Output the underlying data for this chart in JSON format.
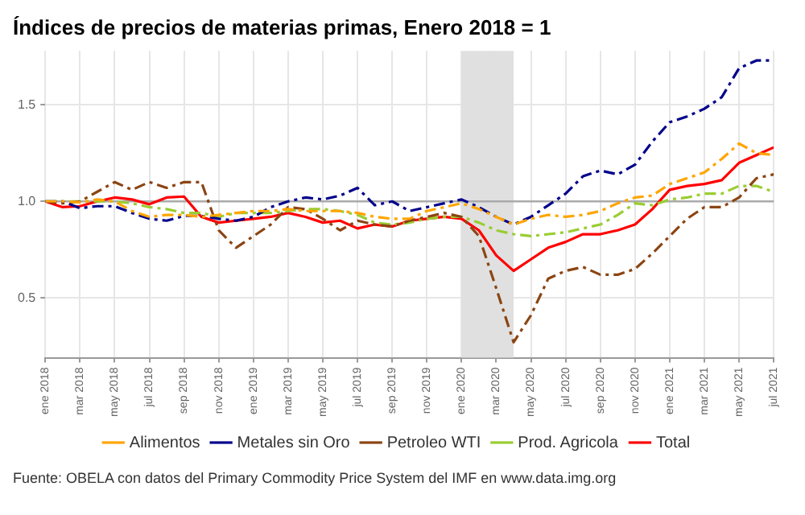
{
  "chart_data": {
    "type": "line",
    "title": "Índices de precios de materias primas, Enero 2018 = 1",
    "x": [
      "2018-01",
      "2018-02",
      "2018-03",
      "2018-04",
      "2018-05",
      "2018-06",
      "2018-07",
      "2018-08",
      "2018-09",
      "2018-10",
      "2018-11",
      "2018-12",
      "2019-01",
      "2019-02",
      "2019-03",
      "2019-04",
      "2019-05",
      "2019-06",
      "2019-07",
      "2019-08",
      "2019-09",
      "2019-10",
      "2019-11",
      "2019-12",
      "2020-01",
      "2020-02",
      "2020-03",
      "2020-04",
      "2020-05",
      "2020-06",
      "2020-07",
      "2020-08",
      "2020-09",
      "2020-10",
      "2020-11",
      "2020-12",
      "2021-01",
      "2021-02",
      "2021-03",
      "2021-04",
      "2021-05",
      "2021-06",
      "2021-07"
    ],
    "series": [
      {
        "name": "Alimentos",
        "color": "#ffa500",
        "line_style": "dashed",
        "values": [
          1.0,
          1.0,
          0.995,
          1.01,
          1.0,
          0.95,
          0.92,
          0.93,
          0.93,
          0.92,
          0.93,
          0.94,
          0.95,
          0.95,
          0.96,
          0.95,
          0.95,
          0.95,
          0.94,
          0.92,
          0.91,
          0.91,
          0.95,
          0.97,
          0.99,
          0.96,
          0.92,
          0.88,
          0.91,
          0.93,
          0.92,
          0.93,
          0.95,
          0.99,
          1.02,
          1.03,
          1.09,
          1.12,
          1.15,
          1.22,
          1.3,
          1.25,
          1.24
        ]
      },
      {
        "name": "Metales sin Oro",
        "color": "#00008b",
        "line_style": "dashed",
        "values": [
          1.0,
          1.0,
          0.965,
          0.975,
          0.975,
          0.94,
          0.91,
          0.9,
          0.925,
          0.925,
          0.91,
          0.9,
          0.92,
          0.97,
          1.0,
          1.02,
          1.01,
          1.03,
          1.07,
          0.98,
          1.0,
          0.95,
          0.97,
          0.99,
          1.01,
          0.97,
          0.92,
          0.88,
          0.92,
          0.98,
          1.04,
          1.13,
          1.16,
          1.14,
          1.19,
          1.31,
          1.41,
          1.44,
          1.48,
          1.54,
          1.69,
          1.73,
          1.73
        ]
      },
      {
        "name": "Petroleo WTI",
        "color": "#8b4513",
        "line_style": "dashed",
        "values": [
          1.0,
          0.99,
          1.0,
          1.05,
          1.1,
          1.06,
          1.1,
          1.07,
          1.1,
          1.1,
          0.85,
          0.76,
          0.82,
          0.88,
          0.97,
          0.96,
          0.91,
          0.85,
          0.9,
          0.88,
          0.87,
          0.9,
          0.92,
          0.94,
          0.92,
          0.82,
          0.55,
          0.27,
          0.41,
          0.6,
          0.64,
          0.66,
          0.62,
          0.62,
          0.65,
          0.73,
          0.82,
          0.91,
          0.97,
          0.97,
          1.02,
          1.12,
          1.14
        ]
      },
      {
        "name": "Prod. Agricola",
        "color": "#9acd32",
        "line_style": "dashed",
        "values": [
          1.0,
          1.0,
          1.0,
          1.0,
          1.0,
          0.99,
          0.97,
          0.96,
          0.94,
          0.94,
          0.92,
          0.94,
          0.94,
          0.94,
          0.95,
          0.96,
          0.96,
          0.95,
          0.93,
          0.89,
          0.88,
          0.89,
          0.91,
          0.92,
          0.92,
          0.89,
          0.85,
          0.83,
          0.82,
          0.83,
          0.84,
          0.86,
          0.88,
          0.93,
          0.99,
          0.98,
          1.01,
          1.02,
          1.04,
          1.04,
          1.08,
          1.08,
          1.05
        ]
      },
      {
        "name": "Total",
        "color": "#ff0000",
        "line_style": "solid",
        "values": [
          1.0,
          0.97,
          0.975,
          1.0,
          1.02,
          1.01,
          0.985,
          1.02,
          1.025,
          0.92,
          0.89,
          0.9,
          0.91,
          0.92,
          0.94,
          0.92,
          0.89,
          0.9,
          0.86,
          0.88,
          0.87,
          0.9,
          0.91,
          0.92,
          0.91,
          0.85,
          0.72,
          0.64,
          0.7,
          0.76,
          0.79,
          0.83,
          0.83,
          0.85,
          0.88,
          0.96,
          1.06,
          1.08,
          1.09,
          1.11,
          1.2,
          1.24,
          1.28
        ]
      }
    ],
    "xlim": [
      "2018-01",
      "2021-07"
    ],
    "xticks": [
      {
        "value": "2018-01",
        "label": "ene 2018"
      },
      {
        "value": "2018-03",
        "label": "mar 2018"
      },
      {
        "value": "2018-05",
        "label": "may 2018"
      },
      {
        "value": "2018-07",
        "label": "jul 2018"
      },
      {
        "value": "2018-09",
        "label": "sep 2018"
      },
      {
        "value": "2018-11",
        "label": "nov 2018"
      },
      {
        "value": "2019-01",
        "label": "ene 2019"
      },
      {
        "value": "2019-03",
        "label": "mar 2019"
      },
      {
        "value": "2019-05",
        "label": "may 2019"
      },
      {
        "value": "2019-07",
        "label": "jul 2019"
      },
      {
        "value": "2019-09",
        "label": "sep 2019"
      },
      {
        "value": "2019-11",
        "label": "nov 2019"
      },
      {
        "value": "2020-01",
        "label": "ene 2020"
      },
      {
        "value": "2020-03",
        "label": "mar 2020"
      },
      {
        "value": "2020-05",
        "label": "may 2020"
      },
      {
        "value": "2020-07",
        "label": "jul 2020"
      },
      {
        "value": "2020-09",
        "label": "sep 2020"
      },
      {
        "value": "2020-11",
        "label": "nov 2020"
      },
      {
        "value": "2021-01",
        "label": "ene 2021"
      },
      {
        "value": "2021-03",
        "label": "mar 2021"
      },
      {
        "value": "2021-05",
        "label": "may 2021"
      },
      {
        "value": "2021-07",
        "label": "jul 2021"
      }
    ],
    "ylim": [
      0.19,
      1.78
    ],
    "yticks": [
      0.5,
      {
        "value": 1,
        "label": "1.0"
      },
      1.5
    ],
    "grid": true,
    "legend": "bottom",
    "marker": "none",
    "bands": [
      {
        "axis": "x",
        "from": "2020-01",
        "to": "2020-04",
        "color": "#e0e0e0"
      }
    ],
    "ref_lines": [
      {
        "axis": "y",
        "value": 1,
        "color": "#aaaaaa"
      }
    ],
    "annotations": [
      "Fuente: OBELA con datos del Primary Commodity Price System del IMF en www.data.img.org"
    ]
  }
}
